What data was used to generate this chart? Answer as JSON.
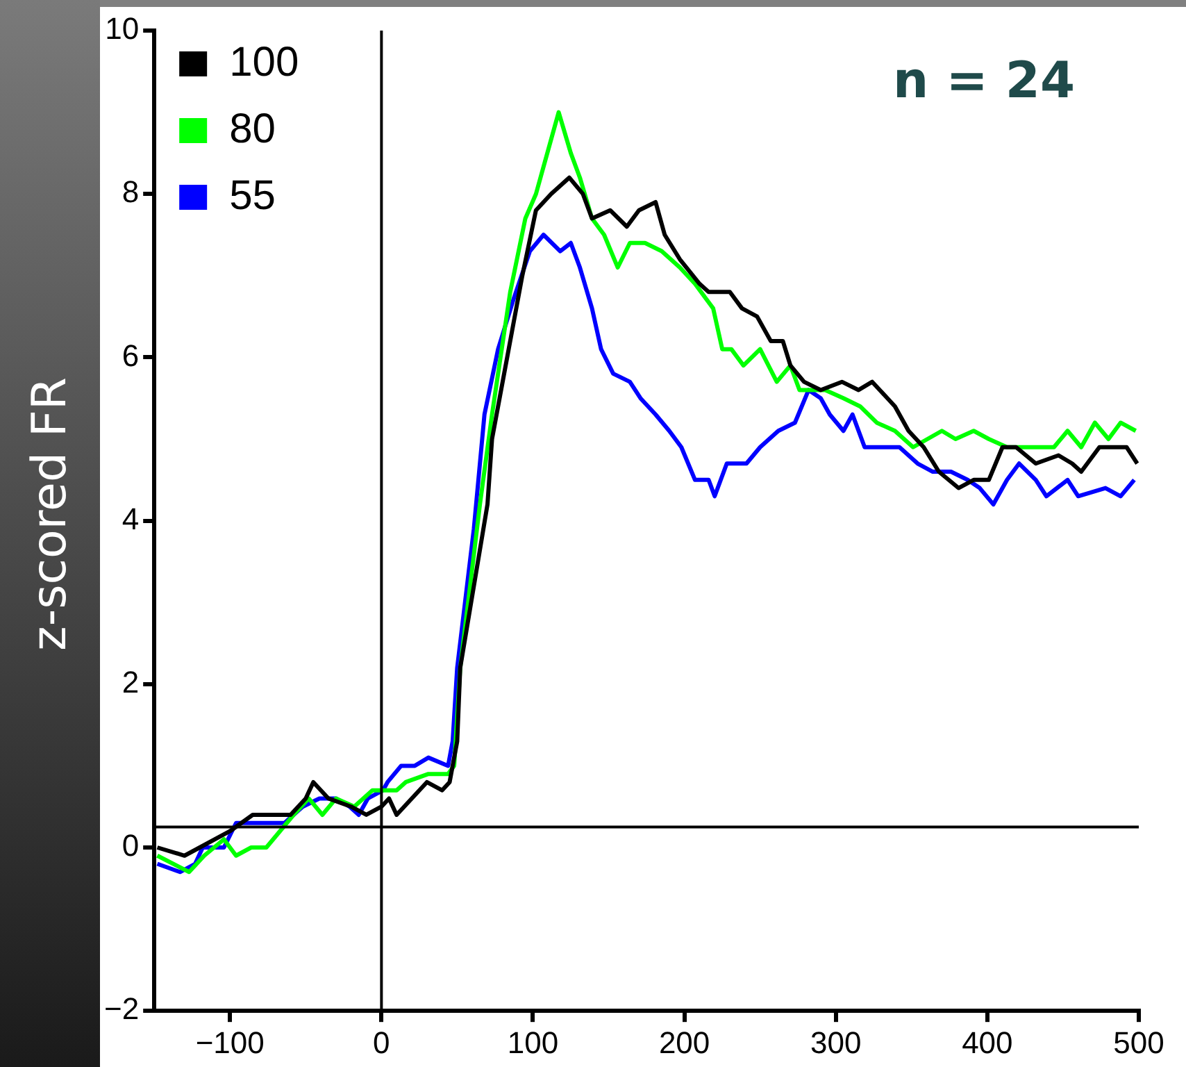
{
  "chart_data": {
    "type": "line",
    "ylabel": "z-scored FR",
    "annotations": [
      "n = 24"
    ],
    "xlim": [
      -150,
      500
    ],
    "xticks": [
      -100,
      0,
      100,
      200,
      300,
      400,
      500
    ],
    "ylim": [
      -2,
      10
    ],
    "yticks": [
      -2,
      0,
      2,
      4,
      6,
      8,
      10
    ],
    "grid": false,
    "legend": "top left",
    "marker": "none",
    "line_style": "solid",
    "ref_lines": [
      {
        "axis": "x",
        "value": 0,
        "color": "#000000"
      },
      {
        "axis": "y",
        "value": 0.25,
        "color": "#000000"
      }
    ],
    "series": [
      {
        "name": "100",
        "color": "#000000",
        "x": [
          -148,
          -130,
          -120,
          -100,
          -85,
          -75,
          -60,
          -50,
          -45,
          -35,
          -20,
          -10,
          0,
          5,
          10,
          20,
          25,
          30,
          40,
          45,
          50,
          52,
          70,
          73,
          81,
          93,
          102,
          112,
          124,
          133,
          139,
          151,
          162,
          170,
          181,
          187,
          197,
          210,
          216,
          230,
          238,
          248,
          257,
          265,
          270,
          279,
          290,
          304,
          315,
          324,
          339,
          348,
          358,
          368,
          381,
          391,
          401,
          410,
          419,
          432,
          447,
          456,
          462,
          474,
          484,
          492,
          499
        ],
        "values": [
          0.0,
          -0.1,
          0.0,
          0.2,
          0.4,
          0.4,
          0.4,
          0.6,
          0.8,
          0.6,
          0.5,
          0.4,
          0.5,
          0.6,
          0.4,
          0.6,
          0.7,
          0.8,
          0.7,
          0.8,
          1.3,
          2.2,
          4.2,
          5.0,
          5.8,
          7.0,
          7.8,
          8.0,
          8.2,
          8.0,
          7.7,
          7.8,
          7.6,
          7.8,
          7.9,
          7.5,
          7.2,
          6.9,
          6.8,
          6.8,
          6.6,
          6.5,
          6.2,
          6.2,
          5.9,
          5.7,
          5.6,
          5.7,
          5.6,
          5.7,
          5.4,
          5.1,
          4.9,
          4.6,
          4.4,
          4.5,
          4.5,
          4.9,
          4.9,
          4.7,
          4.8,
          4.7,
          4.6,
          4.9,
          4.9,
          4.9,
          4.7
        ]
      },
      {
        "name": "80",
        "color": "#00ff00",
        "x": [
          -148,
          -127,
          -117,
          -104,
          -96,
          -86,
          -76,
          -67,
          -58,
          -48,
          -39,
          -30,
          -18,
          -6,
          10,
          16,
          31,
          44,
          48,
          52,
          65,
          73,
          85,
          95,
          102,
          111,
          117,
          125,
          131,
          139,
          147,
          156,
          164,
          174,
          185,
          197,
          207,
          219,
          225,
          231,
          239,
          250,
          261,
          270,
          276,
          293,
          305,
          316,
          327,
          339,
          351,
          370,
          379,
          391,
          401,
          413,
          432,
          444,
          453,
          462,
          471,
          480,
          488,
          498
        ],
        "values": [
          -0.1,
          -0.3,
          -0.1,
          0.1,
          -0.1,
          0.0,
          0.0,
          0.2,
          0.4,
          0.6,
          0.4,
          0.6,
          0.5,
          0.7,
          0.7,
          0.8,
          0.9,
          0.9,
          1.0,
          2.2,
          4.2,
          5.3,
          6.8,
          7.7,
          8.0,
          8.6,
          9.0,
          8.5,
          8.2,
          7.7,
          7.5,
          7.1,
          7.4,
          7.4,
          7.3,
          7.1,
          6.9,
          6.6,
          6.1,
          6.1,
          5.9,
          6.1,
          5.7,
          5.9,
          5.6,
          5.6,
          5.5,
          5.4,
          5.2,
          5.1,
          4.9,
          5.1,
          5.0,
          5.1,
          5.0,
          4.9,
          4.9,
          4.9,
          5.1,
          4.9,
          5.2,
          5.0,
          5.2,
          5.1
        ]
      },
      {
        "name": "55",
        "color": "#0000ff",
        "x": [
          -148,
          -133,
          -123,
          -118,
          -104,
          -96,
          -86,
          -73,
          -64,
          -52,
          -41,
          -30,
          -21,
          -15,
          -9,
          1,
          4,
          13,
          22,
          31,
          44,
          47,
          50,
          61,
          68,
          77,
          87,
          98,
          107,
          118,
          125,
          131,
          139,
          145,
          153,
          164,
          171,
          181,
          190,
          198,
          207,
          216,
          220,
          228,
          241,
          250,
          262,
          273,
          282,
          290,
          296,
          305,
          311,
          319,
          330,
          342,
          354,
          364,
          376,
          387,
          395,
          404,
          413,
          421,
          432,
          439,
          453,
          460,
          478,
          488,
          497
        ],
        "values": [
          -0.2,
          -0.3,
          -0.2,
          0.0,
          0.0,
          0.3,
          0.3,
          0.3,
          0.3,
          0.5,
          0.6,
          0.6,
          0.5,
          0.4,
          0.6,
          0.7,
          0.8,
          1.0,
          1.0,
          1.1,
          1.0,
          1.3,
          2.2,
          3.9,
          5.3,
          6.1,
          6.7,
          7.3,
          7.5,
          7.3,
          7.4,
          7.1,
          6.6,
          6.1,
          5.8,
          5.7,
          5.5,
          5.3,
          5.1,
          4.9,
          4.5,
          4.5,
          4.3,
          4.7,
          4.7,
          4.9,
          5.1,
          5.2,
          5.6,
          5.5,
          5.3,
          5.1,
          5.3,
          4.9,
          4.9,
          4.9,
          4.7,
          4.6,
          4.6,
          4.5,
          4.4,
          4.2,
          4.5,
          4.7,
          4.5,
          4.3,
          4.5,
          4.3,
          4.4,
          4.3,
          4.5
        ]
      }
    ]
  }
}
